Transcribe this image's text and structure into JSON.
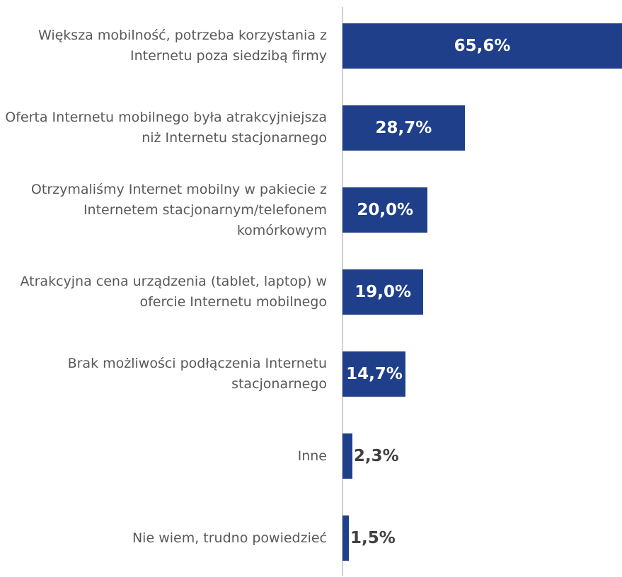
{
  "chart_data": {
    "type": "bar",
    "orientation": "horizontal",
    "color": "#1f3f8a",
    "categories": [
      "Większa mobilność, potrzeba korzystania z Internetu poza siedzibą firmy",
      "Oferta Internetu mobilnego była atrakcyjniejsza niż Internetu stacjonarnego",
      "Otrzymaliśmy Internet mobilny w pakiecie z Internetem stacjonarnym/telefonem komórkowym",
      "Atrakcyjna cena urządzenia (tablet, laptop) w ofercie Internetu mobilnego",
      "Brak możliwości podłączenia Internetu stacjonarnego",
      "Inne",
      "Nie wiem, trudno powiedzieć"
    ],
    "values": [
      65.6,
      28.7,
      20.0,
      19.0,
      14.7,
      2.3,
      1.5
    ],
    "value_labels": [
      "65,6%",
      "28,7%",
      "20,0%",
      "19,0%",
      "14,7%",
      "2,3%",
      "1,5%"
    ]
  }
}
